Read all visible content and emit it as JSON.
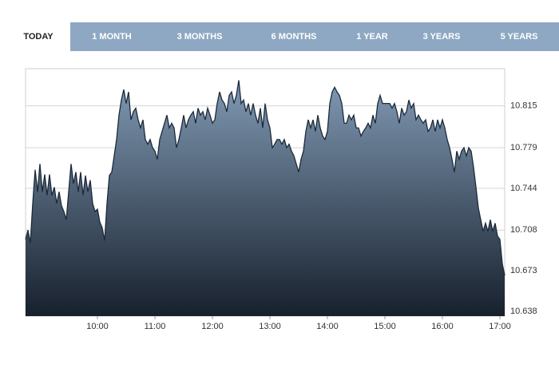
{
  "tabs": [
    "TODAY",
    "1 MONTH",
    "3 MONTHS",
    "6 MONTHS",
    "1 YEAR",
    "3 YEARS",
    "5 YEARS"
  ],
  "chart_data": {
    "type": "area",
    "color": "#1c2a3a",
    "fill_top": "#8099b3",
    "fill_bottom": "#17202d",
    "grid": true,
    "ylim": [
      10.634,
      10.847
    ],
    "yticks": [
      10.638,
      10.673,
      10.708,
      10.744,
      10.779,
      10.815
    ],
    "xlim": [
      525,
      1025
    ],
    "xticks": [
      {
        "value": 600,
        "label": "10:00"
      },
      {
        "value": 660,
        "label": "11:00"
      },
      {
        "value": 720,
        "label": "12:00"
      },
      {
        "value": 780,
        "label": "13:00"
      },
      {
        "value": 840,
        "label": "14:00"
      },
      {
        "value": 900,
        "label": "15:00"
      },
      {
        "value": 960,
        "label": "16:00"
      },
      {
        "value": 1020,
        "label": "17:00"
      }
    ],
    "x": [
      525,
      527.5,
      530,
      532.5,
      535,
      537.5,
      540,
      542.5,
      545,
      547.5,
      550,
      552.5,
      555,
      557.5,
      560,
      562.5,
      565,
      567.5,
      570,
      572.5,
      575,
      577.5,
      580,
      582.5,
      585,
      587.5,
      590,
      592.5,
      595,
      597.5,
      600,
      602.5,
      605,
      607.5,
      610,
      612.5,
      615,
      617.5,
      620,
      622.5,
      625,
      627.5,
      630,
      632.5,
      635,
      637.5,
      640,
      642.5,
      645,
      647.5,
      650,
      652.5,
      655,
      657.5,
      660,
      662.5,
      665,
      667.5,
      670,
      672.5,
      675,
      677.5,
      680,
      682.5,
      685,
      687.5,
      690,
      692.5,
      695,
      697.5,
      700,
      702.5,
      705,
      707.5,
      710,
      712.5,
      715,
      717.5,
      720,
      722.5,
      725,
      727.5,
      730,
      732.5,
      735,
      737.5,
      740,
      742.5,
      745,
      747.5,
      750,
      752.5,
      755,
      757.5,
      760,
      762.5,
      765,
      767.5,
      770,
      772.5,
      775,
      777.5,
      780,
      782.5,
      785,
      787.5,
      790,
      792.5,
      795,
      797.5,
      800,
      802.5,
      805,
      807.5,
      810,
      812.5,
      815,
      817.5,
      820,
      822.5,
      825,
      827.5,
      830,
      832.5,
      835,
      837.5,
      840,
      842.5,
      845,
      847.5,
      850,
      852.5,
      855,
      857.5,
      860,
      862.5,
      865,
      867.5,
      870,
      872.5,
      875,
      877.5,
      880,
      882.5,
      885,
      887.5,
      890,
      892.5,
      895,
      897.5,
      900,
      902.5,
      905,
      907.5,
      910,
      912.5,
      915,
      917.5,
      920,
      922.5,
      925,
      927.5,
      930,
      932.5,
      935,
      937.5,
      940,
      942.5,
      945,
      947.5,
      950,
      952.5,
      955,
      957.5,
      960,
      962.5,
      965,
      967.5,
      970,
      972.5,
      975,
      977.5,
      980,
      982.5,
      985,
      987.5,
      990,
      992.5,
      995,
      997.5,
      1000,
      1002.5,
      1005,
      1007.5,
      1010,
      1012.5,
      1015,
      1017.5,
      1020,
      1022.5,
      1025
    ],
    "values": [
      10.7,
      10.708,
      10.697,
      10.731,
      10.76,
      10.741,
      10.765,
      10.741,
      10.756,
      10.738,
      10.756,
      10.738,
      10.745,
      10.731,
      10.741,
      10.729,
      10.724,
      10.717,
      10.741,
      10.765,
      10.748,
      10.758,
      10.741,
      10.758,
      10.738,
      10.755,
      10.741,
      10.751,
      10.731,
      10.724,
      10.726,
      10.715,
      10.71,
      10.699,
      10.731,
      10.755,
      10.758,
      10.772,
      10.786,
      10.807,
      10.82,
      10.829,
      10.817,
      10.827,
      10.803,
      10.81,
      10.813,
      10.803,
      10.796,
      10.803,
      10.786,
      10.782,
      10.786,
      10.779,
      10.776,
      10.769,
      10.786,
      10.793,
      10.8,
      10.807,
      10.796,
      10.8,
      10.796,
      10.779,
      10.786,
      10.796,
      10.807,
      10.796,
      10.803,
      10.807,
      10.81,
      10.8,
      10.813,
      10.807,
      10.81,
      10.803,
      10.813,
      10.807,
      10.8,
      10.803,
      10.817,
      10.827,
      10.82,
      10.817,
      10.81,
      10.824,
      10.827,
      10.817,
      10.824,
      10.837,
      10.817,
      10.82,
      10.81,
      10.817,
      10.807,
      10.817,
      10.807,
      10.8,
      10.813,
      10.796,
      10.817,
      10.803,
      10.796,
      10.779,
      10.782,
      10.786,
      10.786,
      10.782,
      10.786,
      10.779,
      10.782,
      10.776,
      10.772,
      10.765,
      10.758,
      10.769,
      10.776,
      10.793,
      10.803,
      10.796,
      10.803,
      10.793,
      10.807,
      10.796,
      10.789,
      10.786,
      10.793,
      10.817,
      10.827,
      10.831,
      10.827,
      10.824,
      10.817,
      10.8,
      10.8,
      10.807,
      10.803,
      10.807,
      10.796,
      10.796,
      10.789,
      10.793,
      10.796,
      10.8,
      10.796,
      10.807,
      10.8,
      10.817,
      10.824,
      10.817,
      10.817,
      10.817,
      10.817,
      10.813,
      10.817,
      10.81,
      10.8,
      10.813,
      10.807,
      10.81,
      10.82,
      10.813,
      10.817,
      10.803,
      10.807,
      10.803,
      10.8,
      10.803,
      10.793,
      10.796,
      10.803,
      10.793,
      10.803,
      10.796,
      10.803,
      10.796,
      10.786,
      10.779,
      10.769,
      10.758,
      10.776,
      10.769,
      10.776,
      10.779,
      10.772,
      10.779,
      10.776,
      10.762,
      10.745,
      10.727,
      10.717,
      10.707,
      10.714,
      10.707,
      10.717,
      10.707,
      10.714,
      10.703,
      10.7,
      10.679,
      10.669
    ]
  }
}
